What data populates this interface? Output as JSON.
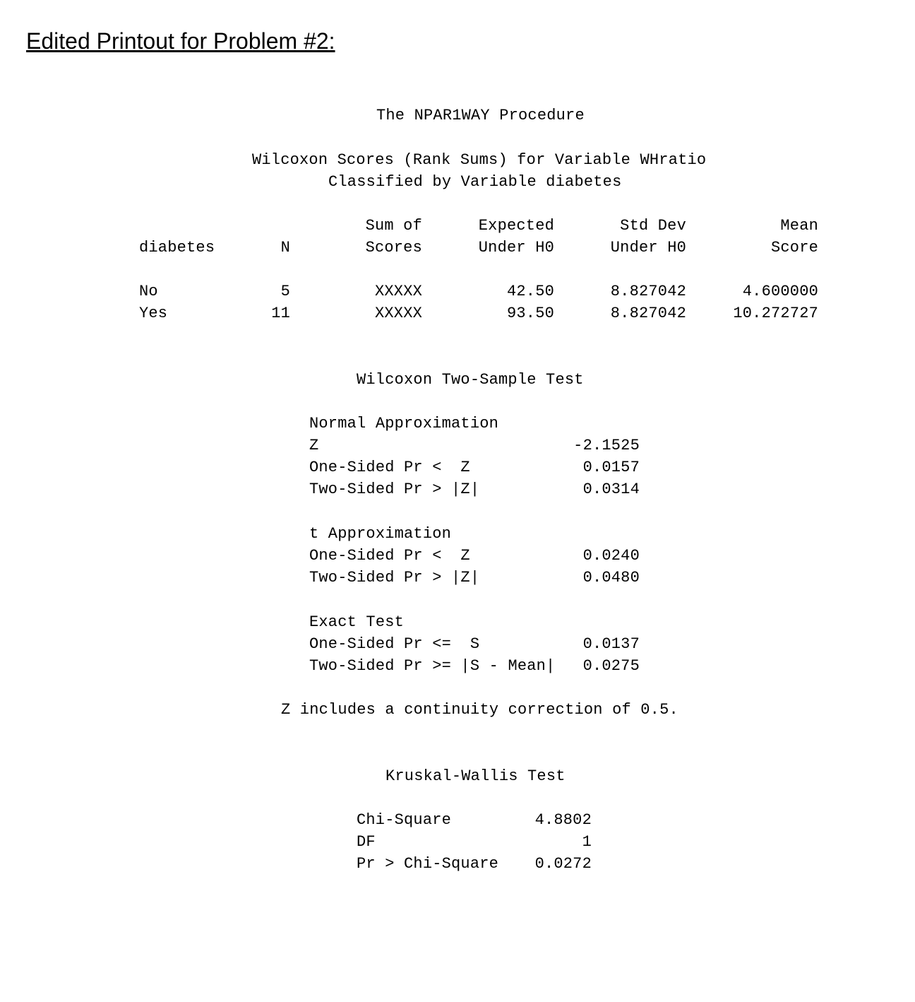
{
  "title": "Edited Printout for Problem #2:",
  "procedure": "The NPAR1WAY Procedure",
  "wilcoxon_scores": {
    "heading1": "Wilcoxon Scores (Rank Sums) for Variable WHratio",
    "heading2": "Classified by Variable diabetes",
    "columns": [
      {
        "line1": "",
        "line2": "diabetes"
      },
      {
        "line1": "",
        "line2": "N"
      },
      {
        "line1": "Sum of",
        "line2": "Scores"
      },
      {
        "line1": "Expected",
        "line2": "Under H0"
      },
      {
        "line1": "Std Dev",
        "line2": "Under H0"
      },
      {
        "line1": "Mean",
        "line2": "Score"
      }
    ],
    "rows": [
      [
        "No",
        "5",
        "XXXXX",
        "42.50",
        "8.827042",
        "4.600000"
      ],
      [
        "Yes",
        "11",
        "XXXXX",
        "93.50",
        "8.827042",
        "10.272727"
      ]
    ]
  },
  "two_sample": {
    "heading": "Wilcoxon Two-Sample Test",
    "normal": {
      "label": "Normal Approximation",
      "rows": [
        [
          "Z",
          "-2.1525"
        ],
        [
          "One-Sided Pr <  Z",
          "0.0157"
        ],
        [
          "Two-Sided Pr > |Z|",
          "0.0314"
        ]
      ]
    },
    "t": {
      "label": "t Approximation",
      "rows": [
        [
          "One-Sided Pr <  Z",
          "0.0240"
        ],
        [
          "Two-Sided Pr > |Z|",
          "0.0480"
        ]
      ]
    },
    "exact": {
      "label": "Exact Test",
      "rows": [
        [
          "One-Sided Pr <=  S",
          "0.0137"
        ],
        [
          "Two-Sided Pr >= |S - Mean|",
          "0.0275"
        ]
      ]
    },
    "note": "Z includes a continuity correction of 0.5."
  },
  "kruskal": {
    "heading": "Kruskal-Wallis Test",
    "rows": [
      [
        "Chi-Square",
        "4.8802"
      ],
      [
        "DF",
        "1"
      ],
      [
        "Pr > Chi-Square",
        "0.0272"
      ]
    ]
  }
}
